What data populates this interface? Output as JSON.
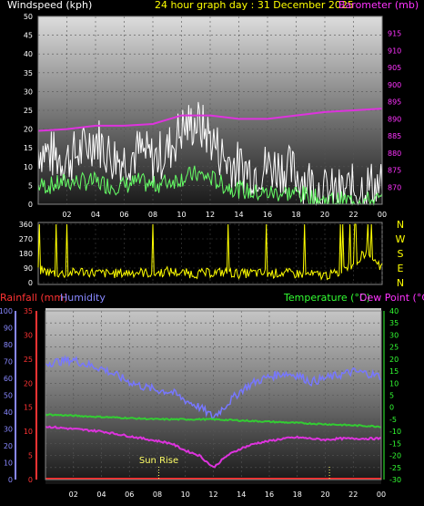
{
  "header": {
    "left_label": "Windspeed (kph)",
    "center_label": "24 hour graph day : 31 December 2025",
    "right_label": "Barometer (mb)"
  },
  "lower_header": {
    "rainfall_label": "Rainfall (mm)",
    "humidity_label": "Humidity",
    "temperature_label": "Temperature (°C)",
    "dewpoint_label": "Dew Point (°C)"
  },
  "annotation": {
    "sunrise_label": "Sun Rise"
  },
  "colors": {
    "wind": "#ffffff",
    "gust_area": "#e0e0e0",
    "wind_avg": "#66ff66",
    "barometer": "#dd33dd",
    "wind_dir": "#ffff00",
    "humidity": "#7777ff",
    "temperature": "#33cc33",
    "dewpoint": "#dd33dd",
    "rainfall": "#ff2222",
    "left_axis_wind": "#ffffff",
    "right_axis_baro": "#ff33ff",
    "left_axis_rain": "#ff3333",
    "left_axis_hum": "#8888ff",
    "right_axis_temp": "#33ff33",
    "dewpoint_label": "#ff33ff"
  },
  "chart_data": [
    {
      "type": "line",
      "panel": "wind_barometer",
      "x_tick_labels": [
        "02",
        "04",
        "06",
        "08",
        "10",
        "12",
        "14",
        "16",
        "18",
        "20",
        "22",
        "00"
      ],
      "x_hours": [
        2,
        4,
        6,
        8,
        10,
        12,
        14,
        16,
        18,
        20,
        22,
        24
      ],
      "xlim": [
        0,
        24
      ],
      "ylim_left": [
        0,
        50
      ],
      "y_ticks_left": [
        0,
        5,
        10,
        15,
        20,
        25,
        30,
        35,
        40,
        45,
        50
      ],
      "ylim_right": [
        865,
        920
      ],
      "y_ticks_right": [
        870,
        875,
        880,
        885,
        890,
        895,
        900,
        905,
        910,
        915
      ],
      "series": [
        {
          "axis": "left",
          "x": [
            0,
            1,
            2,
            3,
            4,
            5,
            6,
            7,
            8,
            9,
            10,
            11,
            12,
            13,
            14,
            15,
            16,
            17,
            18,
            19,
            20,
            21,
            22,
            23,
            24
          ],
          "y": [
            15,
            13,
            12,
            14,
            18,
            13,
            12,
            14,
            12,
            14,
            20,
            22,
            18,
            12,
            10,
            9,
            10,
            10,
            8,
            6,
            3,
            3,
            4,
            5,
            5
          ]
        },
        {
          "axis": "left",
          "x": [
            0,
            1,
            2,
            3,
            4,
            5,
            6,
            7,
            8,
            9,
            10,
            11,
            12,
            13,
            14,
            15,
            16,
            17,
            18,
            19,
            20,
            21,
            22,
            23,
            24
          ],
          "y": [
            5,
            5,
            6,
            6,
            6,
            5,
            5,
            6,
            5,
            6,
            7,
            8,
            7,
            5,
            4,
            3,
            3,
            3,
            3,
            2,
            1,
            1,
            1,
            1,
            1
          ]
        },
        {
          "axis": "right",
          "x": [
            0,
            2,
            4,
            6,
            8,
            10,
            12,
            14,
            16,
            18,
            20,
            22,
            24
          ],
          "y": [
            886.5,
            887,
            888,
            888,
            888.5,
            891,
            891,
            890,
            890,
            891,
            892,
            892.5,
            893
          ]
        }
      ]
    },
    {
      "type": "line",
      "panel": "wind_direction",
      "ylim": [
        0,
        360
      ],
      "y_ticks": [
        0,
        90,
        180,
        270,
        360
      ],
      "compass_labels": [
        "N",
        "W",
        "S",
        "E",
        "N"
      ],
      "series": [
        {
          "x": [
            0,
            1,
            2,
            3,
            4,
            5,
            6,
            7,
            8,
            9,
            10,
            11,
            12,
            13,
            14,
            15,
            16,
            17,
            18,
            19,
            20,
            21,
            22,
            23,
            24
          ],
          "y": [
            80,
            60,
            55,
            70,
            60,
            55,
            60,
            65,
            55,
            70,
            60,
            55,
            60,
            65,
            55,
            60,
            55,
            60,
            55,
            50,
            45,
            60,
            120,
            200,
            90
          ]
        }
      ]
    },
    {
      "type": "line",
      "panel": "rain_humidity_temperature",
      "y_ticks_humidity": [
        0,
        10,
        20,
        30,
        40,
        50,
        60,
        70,
        80,
        90,
        100
      ],
      "ylim_humidity": [
        0,
        100
      ],
      "y_ticks_rainfall": [
        0,
        5,
        10,
        15,
        20,
        25,
        30,
        35
      ],
      "ylim_rainfall": [
        0,
        35
      ],
      "y_ticks_temperature": [
        -30,
        -25,
        -20,
        -15,
        -10,
        -5,
        0,
        5,
        10,
        15,
        20,
        25,
        30,
        35,
        40
      ],
      "ylim_temperature": [
        -30,
        40
      ],
      "series": [
        {
          "axis": "humidity",
          "x": [
            0,
            1,
            2,
            3,
            4,
            5,
            6,
            7,
            8,
            9,
            10,
            11,
            12,
            13,
            14,
            15,
            16,
            17,
            18,
            19,
            20,
            21,
            22,
            23,
            24
          ],
          "y": [
            69,
            70,
            71,
            68,
            66,
            62,
            58,
            55,
            53,
            52,
            47,
            43,
            37,
            45,
            53,
            58,
            61,
            63,
            62,
            58,
            60,
            62,
            64,
            63,
            61
          ]
        },
        {
          "axis": "temperature",
          "x": [
            0,
            2,
            4,
            6,
            8,
            10,
            12,
            14,
            16,
            18,
            20,
            22,
            24
          ],
          "y": [
            -3,
            -3.5,
            -4,
            -4.5,
            -5,
            -5,
            -5,
            -5.5,
            -6,
            -6.5,
            -7,
            -7.5,
            -8
          ]
        },
        {
          "axis": "temperature",
          "x": [
            0,
            1,
            2,
            3,
            4,
            5,
            6,
            7,
            8,
            9,
            10,
            11,
            12,
            13,
            14,
            15,
            16,
            17,
            18,
            19,
            20,
            21,
            22,
            23,
            24
          ],
          "y": [
            -8,
            -8.5,
            -9,
            -9.5,
            -10,
            -11,
            -12,
            -13,
            -14,
            -15,
            -18,
            -20,
            -25,
            -20,
            -17,
            -15,
            -14,
            -13,
            -12.5,
            -13,
            -13.5,
            -13,
            -13,
            -13,
            -13
          ]
        },
        {
          "axis": "rainfall",
          "x": [
            0,
            24
          ],
          "y": [
            0,
            0
          ]
        }
      ],
      "annotations": [
        {
          "label": "Sun Rise",
          "x_hour": 8.1
        },
        {
          "x_hour": 20.3
        }
      ]
    }
  ]
}
